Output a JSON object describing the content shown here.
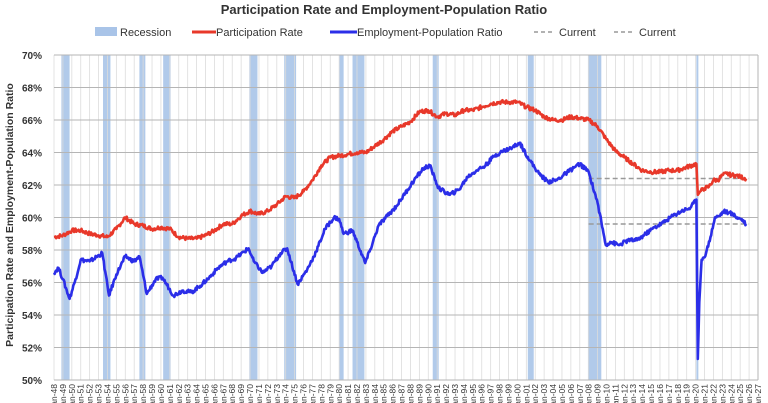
{
  "chart_data": {
    "type": "line",
    "title": "Participation Rate and Employment-Population Ratio",
    "xlabel": "",
    "ylabel": "Participation Rate and Employment-Population Ratio",
    "xlim": [
      "1948-01",
      "2027-01"
    ],
    "ylim": [
      50,
      70
    ],
    "y_ticks": [
      "50%",
      "52%",
      "54%",
      "56%",
      "58%",
      "60%",
      "62%",
      "64%",
      "66%",
      "68%",
      "70%"
    ],
    "x_tick_labels": [
      "Jan-48",
      "Jan-49",
      "Jan-50",
      "Jan-51",
      "Jan-52",
      "Jan-53",
      "Jan-54",
      "Jan-55",
      "Jan-56",
      "Jan-57",
      "Jan-58",
      "Jan-59",
      "Jan-60",
      "Jan-61",
      "Jan-62",
      "Jan-63",
      "Jan-64",
      "Jan-65",
      "Jan-66",
      "Jan-67",
      "Jan-68",
      "Jan-69",
      "Jan-70",
      "Jan-71",
      "Jan-72",
      "Jan-73",
      "Jan-74",
      "Jan-75",
      "Jan-76",
      "Jan-77",
      "Jan-78",
      "Jan-79",
      "Jan-80",
      "Jan-81",
      "Jan-82",
      "Jan-83",
      "Jan-84",
      "Jan-85",
      "Jan-86",
      "Jan-87",
      "Jan-88",
      "Jan-89",
      "Jan-90",
      "Jan-91",
      "Jan-92",
      "Jan-93",
      "Jan-94",
      "Jan-95",
      "Jan-96",
      "Jan-97",
      "Jan-98",
      "Jan-99",
      "Jan-00",
      "Jan-01",
      "Jan-02",
      "Jan-03",
      "Jan-04",
      "Jan-05",
      "Jan-06",
      "Jan-07",
      "Jan-08",
      "Jan-09",
      "Jan-10",
      "Jan-11",
      "Jan-12",
      "Jan-13",
      "Jan-14",
      "Jan-15",
      "Jan-16",
      "Jan-17",
      "Jan-18",
      "Jan-19",
      "Jan-20",
      "Jan-21",
      "Jan-22",
      "Jan-23",
      "Jan-24",
      "Jan-25",
      "Jan-26",
      "Jan-27"
    ],
    "grid": true,
    "legend_placement": "top",
    "legend": [
      "Recession",
      "Participation Rate",
      "Employment-Population Ratio",
      "Current",
      "Current"
    ],
    "colors": {
      "recession": "#a9c4e8",
      "participation": "#e8382a",
      "employment": "#2b2ee8",
      "current": "#999999",
      "grid": "#c8c8c8"
    },
    "recessions": [
      [
        "1948-11",
        "1949-10"
      ],
      [
        "1953-07",
        "1954-05"
      ],
      [
        "1957-08",
        "1958-04"
      ],
      [
        "1960-04",
        "1961-02"
      ],
      [
        "1969-12",
        "1970-11"
      ],
      [
        "1973-11",
        "1975-03"
      ],
      [
        "1980-01",
        "1980-07"
      ],
      [
        "1981-07",
        "1982-11"
      ],
      [
        "1990-07",
        "1991-03"
      ],
      [
        "2001-03",
        "2001-11"
      ],
      [
        "2007-12",
        "2009-06"
      ],
      [
        "2020-02",
        "2020-04"
      ]
    ],
    "series": [
      {
        "name": "Participation Rate",
        "points": [
          [
            "1948-01",
            58.8
          ],
          [
            "1949-01",
            58.9
          ],
          [
            "1950-01",
            59.2
          ],
          [
            "1951-01",
            59.2
          ],
          [
            "1952-01",
            59.0
          ],
          [
            "1953-01",
            58.9
          ],
          [
            "1954-01",
            58.8
          ],
          [
            "1955-01",
            59.3
          ],
          [
            "1956-01",
            60.0
          ],
          [
            "1957-01",
            59.6
          ],
          [
            "1958-01",
            59.5
          ],
          [
            "1959-01",
            59.3
          ],
          [
            "1960-01",
            59.4
          ],
          [
            "1961-01",
            59.3
          ],
          [
            "1962-01",
            58.8
          ],
          [
            "1963-01",
            58.7
          ],
          [
            "1964-01",
            58.7
          ],
          [
            "1965-01",
            58.9
          ],
          [
            "1966-01",
            59.2
          ],
          [
            "1967-01",
            59.6
          ],
          [
            "1968-01",
            59.6
          ],
          [
            "1969-01",
            60.1
          ],
          [
            "1970-01",
            60.4
          ],
          [
            "1971-01",
            60.2
          ],
          [
            "1972-01",
            60.4
          ],
          [
            "1973-01",
            60.8
          ],
          [
            "1974-01",
            61.3
          ],
          [
            "1975-01",
            61.2
          ],
          [
            "1976-01",
            61.6
          ],
          [
            "1977-01",
            62.3
          ],
          [
            "1978-01",
            63.2
          ],
          [
            "1979-01",
            63.7
          ],
          [
            "1980-01",
            63.8
          ],
          [
            "1981-01",
            63.9
          ],
          [
            "1982-01",
            64.0
          ],
          [
            "1983-01",
            64.0
          ],
          [
            "1984-01",
            64.4
          ],
          [
            "1985-01",
            64.8
          ],
          [
            "1986-01",
            65.3
          ],
          [
            "1987-01",
            65.6
          ],
          [
            "1988-01",
            65.9
          ],
          [
            "1989-01",
            66.5
          ],
          [
            "1990-01",
            66.6
          ],
          [
            "1991-01",
            66.2
          ],
          [
            "1992-01",
            66.4
          ],
          [
            "1993-01",
            66.3
          ],
          [
            "1994-01",
            66.6
          ],
          [
            "1995-01",
            66.6
          ],
          [
            "1996-01",
            66.8
          ],
          [
            "1997-01",
            67.0
          ],
          [
            "1998-01",
            67.1
          ],
          [
            "1999-01",
            67.1
          ],
          [
            "2000-01",
            67.1
          ],
          [
            "2001-01",
            66.8
          ],
          [
            "2002-01",
            66.6
          ],
          [
            "2003-01",
            66.2
          ],
          [
            "2004-01",
            66.0
          ],
          [
            "2005-01",
            66.0
          ],
          [
            "2006-01",
            66.2
          ],
          [
            "2007-01",
            66.1
          ],
          [
            "2008-01",
            66.0
          ],
          [
            "2009-01",
            65.6
          ],
          [
            "2010-01",
            64.8
          ],
          [
            "2011-01",
            64.1
          ],
          [
            "2012-01",
            63.7
          ],
          [
            "2013-01",
            63.3
          ],
          [
            "2014-01",
            62.9
          ],
          [
            "2015-01",
            62.8
          ],
          [
            "2016-01",
            62.8
          ],
          [
            "2017-01",
            62.9
          ],
          [
            "2018-01",
            62.9
          ],
          [
            "2019-01",
            63.1
          ],
          [
            "2020-02",
            63.3
          ],
          [
            "2020-04",
            61.4
          ],
          [
            "2020-07",
            61.6
          ],
          [
            "2021-01",
            61.8
          ],
          [
            "2021-07",
            61.9
          ],
          [
            "2022-01",
            62.3
          ],
          [
            "2022-07",
            62.3
          ],
          [
            "2023-01",
            62.6
          ],
          [
            "2023-07",
            62.7
          ],
          [
            "2024-01",
            62.6
          ],
          [
            "2024-07",
            62.6
          ],
          [
            "2025-01",
            62.5
          ],
          [
            "2025-09",
            62.4
          ]
        ]
      },
      {
        "name": "Employment-Population Ratio",
        "points": [
          [
            "1948-01",
            56.6
          ],
          [
            "1948-07",
            56.9
          ],
          [
            "1949-01",
            56.2
          ],
          [
            "1949-10",
            55.0
          ],
          [
            "1950-06",
            56.2
          ],
          [
            "1951-01",
            57.4
          ],
          [
            "1952-01",
            57.3
          ],
          [
            "1953-06",
            57.8
          ],
          [
            "1954-03",
            55.2
          ],
          [
            "1955-01",
            56.5
          ],
          [
            "1956-01",
            57.6
          ],
          [
            "1957-01",
            57.3
          ],
          [
            "1957-08",
            57.6
          ],
          [
            "1958-06",
            55.3
          ],
          [
            "1959-06",
            56.2
          ],
          [
            "1960-03",
            56.3
          ],
          [
            "1961-06",
            55.2
          ],
          [
            "1962-06",
            55.5
          ],
          [
            "1963-06",
            55.4
          ],
          [
            "1964-06",
            55.8
          ],
          [
            "1965-06",
            56.3
          ],
          [
            "1966-06",
            56.9
          ],
          [
            "1967-06",
            57.3
          ],
          [
            "1968-06",
            57.5
          ],
          [
            "1969-11",
            58.1
          ],
          [
            "1970-06",
            57.3
          ],
          [
            "1971-06",
            56.6
          ],
          [
            "1972-06",
            57.0
          ],
          [
            "1973-06",
            57.8
          ],
          [
            "1974-03",
            58.1
          ],
          [
            "1975-05",
            55.9
          ],
          [
            "1976-06",
            56.8
          ],
          [
            "1977-06",
            57.9
          ],
          [
            "1978-06",
            59.3
          ],
          [
            "1979-06",
            60.0
          ],
          [
            "1980-01",
            59.9
          ],
          [
            "1980-07",
            59.0
          ],
          [
            "1981-07",
            59.2
          ],
          [
            "1982-12",
            57.2
          ],
          [
            "1983-06",
            57.9
          ],
          [
            "1984-06",
            59.5
          ],
          [
            "1985-06",
            60.1
          ],
          [
            "1986-06",
            60.7
          ],
          [
            "1987-06",
            61.5
          ],
          [
            "1988-06",
            62.3
          ],
          [
            "1989-06",
            63.0
          ],
          [
            "1990-03",
            63.2
          ],
          [
            "1991-03",
            61.8
          ],
          [
            "1992-06",
            61.4
          ],
          [
            "1993-06",
            61.7
          ],
          [
            "1994-06",
            62.5
          ],
          [
            "1995-06",
            62.9
          ],
          [
            "1996-06",
            63.2
          ],
          [
            "1997-06",
            63.8
          ],
          [
            "1998-06",
            64.1
          ],
          [
            "1999-06",
            64.3
          ],
          [
            "2000-04",
            64.6
          ],
          [
            "2001-06",
            63.5
          ],
          [
            "2002-06",
            62.7
          ],
          [
            "2003-06",
            62.2
          ],
          [
            "2004-06",
            62.3
          ],
          [
            "2005-06",
            62.7
          ],
          [
            "2006-06",
            63.1
          ],
          [
            "2007-01",
            63.3
          ],
          [
            "2008-01",
            62.8
          ],
          [
            "2009-01",
            60.9
          ],
          [
            "2009-12",
            58.3
          ],
          [
            "2010-06",
            58.5
          ],
          [
            "2011-06",
            58.3
          ],
          [
            "2012-06",
            58.6
          ],
          [
            "2013-06",
            58.6
          ],
          [
            "2014-06",
            59.0
          ],
          [
            "2015-06",
            59.4
          ],
          [
            "2016-06",
            59.7
          ],
          [
            "2017-06",
            60.1
          ],
          [
            "2018-06",
            60.4
          ],
          [
            "2019-06",
            60.6
          ],
          [
            "2020-02",
            61.1
          ],
          [
            "2020-04",
            51.3
          ],
          [
            "2020-06",
            54.8
          ],
          [
            "2020-09",
            57.4
          ],
          [
            "2021-03",
            57.8
          ],
          [
            "2021-09",
            58.8
          ],
          [
            "2022-03",
            60.0
          ],
          [
            "2022-09",
            60.1
          ],
          [
            "2023-03",
            60.4
          ],
          [
            "2023-09",
            60.3
          ],
          [
            "2024-03",
            60.2
          ],
          [
            "2024-09",
            60.0
          ],
          [
            "2025-03",
            59.9
          ],
          [
            "2025-09",
            59.6
          ]
        ]
      }
    ],
    "current_lines": [
      {
        "label": "Current",
        "value": 62.4,
        "from": "2008-01",
        "to": "2026-01"
      },
      {
        "label": "Current",
        "value": 59.6,
        "from": "2008-01",
        "to": "2026-01"
      }
    ]
  }
}
